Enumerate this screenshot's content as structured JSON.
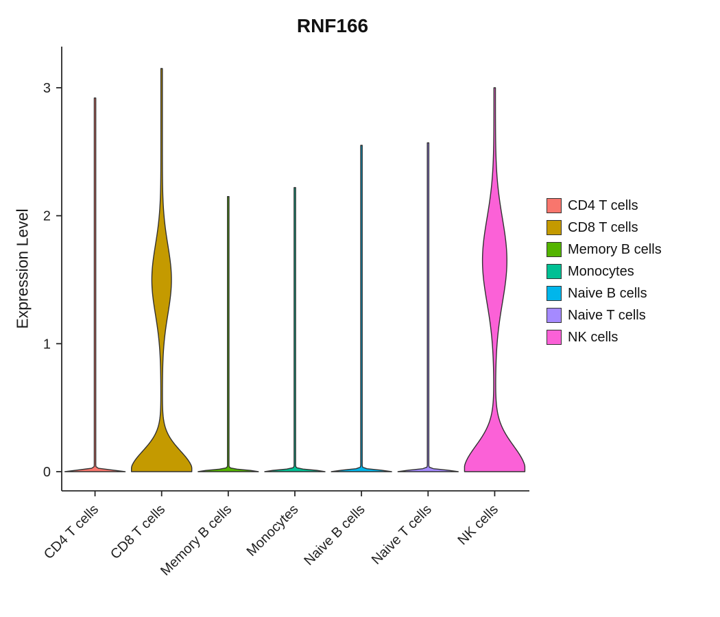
{
  "chart_data": {
    "type": "violin",
    "title": "RNF166",
    "xlabel": "",
    "ylabel": "Expression Level",
    "ylim": [
      0,
      3.2
    ],
    "yticks": [
      0,
      1,
      2,
      3
    ],
    "categories": [
      "CD4 T cells",
      "CD8 T cells",
      "Memory B cells",
      "Monocytes",
      "Naive B cells",
      "Naive T cells",
      "NK cells"
    ],
    "legend_position": "right",
    "grid": false,
    "colors": {
      "outline": "#303030",
      "axis": "#262626",
      "tick_text": "#1f1f1f"
    },
    "series": [
      {
        "name": "CD4 T cells",
        "color": "#F8766D",
        "max": 2.92,
        "base_spread": 0.012,
        "bulge": null
      },
      {
        "name": "CD8 T cells",
        "color": "#C49A00",
        "max": 3.15,
        "base_spread": 0.16,
        "bulge": {
          "center": 1.5,
          "spread": 0.27,
          "rel_width": 0.3
        }
      },
      {
        "name": "Memory B cells",
        "color": "#53B400",
        "max": 2.15,
        "base_spread": 0.012,
        "bulge": null
      },
      {
        "name": "Monocytes",
        "color": "#00C094",
        "max": 2.22,
        "base_spread": 0.012,
        "bulge": null
      },
      {
        "name": "Naive B cells",
        "color": "#00B6EB",
        "max": 2.55,
        "base_spread": 0.012,
        "bulge": null
      },
      {
        "name": "Naive T cells",
        "color": "#A58AFF",
        "max": 2.57,
        "base_spread": 0.012,
        "bulge": null
      },
      {
        "name": "NK cells",
        "color": "#FB61D7",
        "max": 3.0,
        "base_spread": 0.2,
        "bulge": {
          "center": 1.65,
          "spread": 0.33,
          "rel_width": 0.38
        }
      }
    ]
  }
}
